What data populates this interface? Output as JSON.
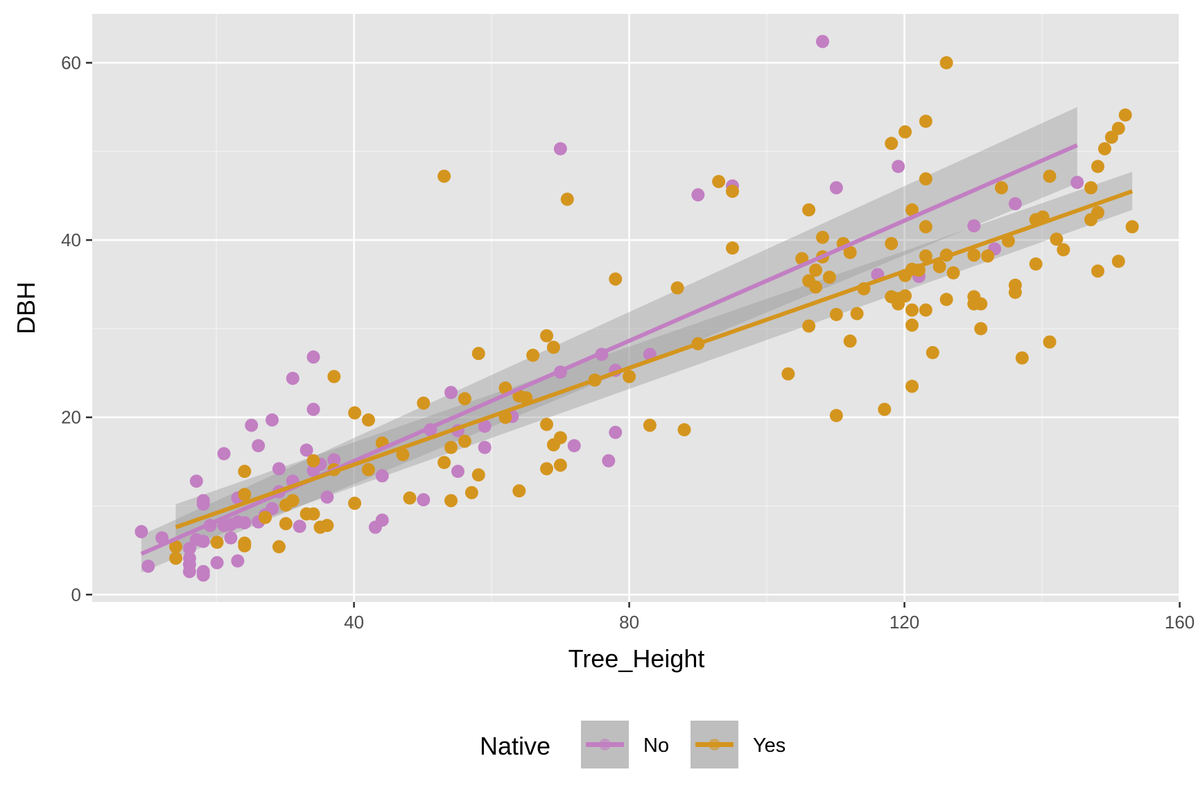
{
  "chart_data": {
    "type": "scatter",
    "title": "",
    "xlabel": "Tree_Height",
    "ylabel": "DBH",
    "xlim": [
      5,
      160
    ],
    "ylim": [
      -1,
      64
    ],
    "x_ticks": [
      40,
      80,
      120,
      160
    ],
    "x_tick_labels": [
      "40",
      "80",
      "120",
      "160"
    ],
    "x_minor_gridlines": [
      20,
      60,
      100,
      140
    ],
    "y_ticks": [
      0,
      20,
      40,
      60
    ],
    "y_tick_labels": [
      "0",
      "20",
      "40",
      "60"
    ],
    "y_minor_gridlines": [
      10,
      30,
      50
    ],
    "grid": true,
    "legend": {
      "title": "Native",
      "position": "bottom",
      "entries": [
        "No",
        "Yes"
      ]
    },
    "series": [
      {
        "name": "No",
        "color": "#C27FC2",
        "points": [
          [
            9.1,
            7.1
          ],
          [
            10.1,
            3.2
          ],
          [
            12.1,
            6.4
          ],
          [
            16.1,
            4.1
          ],
          [
            16.1,
            2.6
          ],
          [
            16.1,
            5.2
          ],
          [
            16.1,
            3.4
          ],
          [
            17.1,
            12.8
          ],
          [
            17.1,
            6.2
          ],
          [
            18.1,
            10.6
          ],
          [
            18.1,
            10.2
          ],
          [
            18.1,
            2.6
          ],
          [
            18.1,
            2.2
          ],
          [
            18.1,
            6.0
          ],
          [
            19.1,
            7.8
          ],
          [
            20.1,
            3.6
          ],
          [
            21.1,
            15.9
          ],
          [
            21.1,
            7.8
          ],
          [
            22.1,
            6.4
          ],
          [
            22.1,
            7.9
          ],
          [
            23.1,
            10.9
          ],
          [
            23.1,
            3.8
          ],
          [
            23.1,
            8.2
          ],
          [
            24.1,
            8.1
          ],
          [
            25.1,
            19.1
          ],
          [
            26.1,
            16.8
          ],
          [
            26.1,
            8.2
          ],
          [
            27.1,
            9.0
          ],
          [
            28.1,
            19.7
          ],
          [
            28.1,
            9.7
          ],
          [
            29.1,
            14.2
          ],
          [
            29.1,
            11.6
          ],
          [
            31.1,
            24.4
          ],
          [
            31.1,
            12.8
          ],
          [
            32.1,
            7.7
          ],
          [
            33.1,
            16.3
          ],
          [
            34.1,
            26.8
          ],
          [
            34.1,
            20.9
          ],
          [
            34.1,
            14.0
          ],
          [
            35.1,
            14.7
          ],
          [
            36.1,
            11.0
          ],
          [
            37.1,
            15.2
          ],
          [
            43.1,
            7.6
          ],
          [
            44.1,
            8.4
          ],
          [
            44.1,
            13.4
          ],
          [
            50.1,
            10.7
          ],
          [
            51.1,
            18.6
          ],
          [
            54.1,
            22.8
          ],
          [
            55.1,
            13.9
          ],
          [
            55.1,
            18.5
          ],
          [
            59.0,
            19.0
          ],
          [
            59.0,
            16.6
          ],
          [
            63.0,
            20.1
          ],
          [
            70.0,
            50.3
          ],
          [
            70.0,
            25.1
          ],
          [
            72.0,
            16.8
          ],
          [
            76.0,
            27.1
          ],
          [
            77.0,
            15.1
          ],
          [
            78.0,
            25.3
          ],
          [
            78.0,
            18.3
          ],
          [
            83.0,
            27.1
          ],
          [
            90.0,
            45.1
          ],
          [
            95.0,
            46.1
          ],
          [
            108.1,
            62.4
          ],
          [
            110.1,
            45.9
          ],
          [
            116.1,
            36.1
          ],
          [
            119.1,
            48.3
          ],
          [
            122.1,
            35.9
          ],
          [
            130.1,
            41.6
          ],
          [
            133.1,
            39.0
          ],
          [
            136.1,
            44.1
          ],
          [
            145.1,
            46.5
          ]
        ],
        "trend": {
          "x": [
            9.1,
            145.1
          ],
          "y": [
            4.6,
            50.7
          ]
        },
        "ci_band": {
          "x": [
            9.1,
            145.1
          ],
          "lower": [
            2.5,
            46.4
          ],
          "upper": [
            6.7,
            55.0
          ]
        }
      },
      {
        "name": "Yes",
        "color": "#D4951E",
        "points": [
          [
            14.1,
            5.4
          ],
          [
            14.1,
            4.1
          ],
          [
            20.1,
            5.9
          ],
          [
            24.1,
            13.9
          ],
          [
            24.1,
            11.3
          ],
          [
            24.1,
            5.8
          ],
          [
            24.1,
            5.5
          ],
          [
            27.1,
            8.7
          ],
          [
            29.1,
            5.4
          ],
          [
            30.1,
            8.0
          ],
          [
            30.1,
            10.1
          ],
          [
            31.1,
            10.6
          ],
          [
            33.1,
            9.1
          ],
          [
            34.1,
            15.1
          ],
          [
            34.1,
            9.1
          ],
          [
            35.1,
            7.6
          ],
          [
            36.1,
            7.8
          ],
          [
            37.1,
            24.6
          ],
          [
            37.1,
            14.1
          ],
          [
            40.1,
            20.5
          ],
          [
            40.1,
            10.3
          ],
          [
            42.1,
            19.7
          ],
          [
            42.1,
            14.1
          ],
          [
            44.1,
            17.1
          ],
          [
            47.1,
            15.8
          ],
          [
            48.1,
            10.9
          ],
          [
            50.1,
            21.6
          ],
          [
            53.1,
            47.2
          ],
          [
            53.1,
            14.9
          ],
          [
            54.1,
            16.6
          ],
          [
            54.1,
            10.6
          ],
          [
            56.1,
            22.1
          ],
          [
            56.1,
            17.3
          ],
          [
            57.1,
            11.5
          ],
          [
            58.1,
            27.2
          ],
          [
            58.1,
            13.5
          ],
          [
            62.0,
            23.3
          ],
          [
            62.0,
            20.0
          ],
          [
            64.0,
            22.4
          ],
          [
            64.0,
            11.7
          ],
          [
            65.0,
            22.2
          ],
          [
            66.0,
            27.0
          ],
          [
            68.0,
            29.2
          ],
          [
            68.0,
            19.2
          ],
          [
            68.0,
            14.2
          ],
          [
            69.0,
            27.9
          ],
          [
            69.0,
            16.9
          ],
          [
            70.0,
            17.7
          ],
          [
            70.0,
            14.6
          ],
          [
            71.0,
            44.6
          ],
          [
            75.0,
            24.2
          ],
          [
            78.0,
            35.6
          ],
          [
            80.0,
            24.6
          ],
          [
            83.0,
            19.1
          ],
          [
            87.0,
            34.6
          ],
          [
            88.0,
            18.6
          ],
          [
            90.0,
            28.3
          ],
          [
            93.0,
            46.6
          ],
          [
            95.0,
            45.5
          ],
          [
            95.0,
            39.1
          ],
          [
            103.1,
            24.9
          ],
          [
            105.1,
            37.9
          ],
          [
            106.1,
            43.4
          ],
          [
            106.1,
            35.4
          ],
          [
            106.1,
            30.3
          ],
          [
            107.1,
            36.6
          ],
          [
            107.1,
            34.7
          ],
          [
            108.1,
            40.3
          ],
          [
            108.1,
            38.1
          ],
          [
            109.1,
            35.8
          ],
          [
            110.1,
            31.6
          ],
          [
            110.1,
            20.2
          ],
          [
            111.1,
            39.6
          ],
          [
            112.1,
            38.6
          ],
          [
            112.1,
            28.6
          ],
          [
            113.1,
            31.7
          ],
          [
            114.1,
            34.5
          ],
          [
            117.1,
            20.9
          ],
          [
            118.1,
            50.9
          ],
          [
            118.1,
            39.6
          ],
          [
            118.1,
            33.6
          ],
          [
            119.1,
            33.4
          ],
          [
            119.1,
            32.8
          ],
          [
            120.1,
            52.2
          ],
          [
            120.1,
            33.7
          ],
          [
            120.1,
            36.0
          ],
          [
            121.1,
            43.4
          ],
          [
            121.1,
            36.7
          ],
          [
            121.1,
            32.1
          ],
          [
            121.1,
            30.4
          ],
          [
            121.1,
            23.5
          ],
          [
            122.1,
            36.6
          ],
          [
            123.1,
            53.4
          ],
          [
            123.1,
            46.9
          ],
          [
            123.1,
            41.5
          ],
          [
            123.1,
            38.2
          ],
          [
            123.1,
            32.1
          ],
          [
            124.1,
            27.3
          ],
          [
            125.1,
            37.0
          ],
          [
            126.1,
            60.0
          ],
          [
            126.1,
            38.3
          ],
          [
            126.1,
            33.3
          ],
          [
            127.1,
            36.3
          ],
          [
            130.1,
            38.3
          ],
          [
            130.1,
            33.6
          ],
          [
            130.1,
            32.8
          ],
          [
            131.1,
            32.8
          ],
          [
            131.1,
            30.0
          ],
          [
            132.1,
            38.2
          ],
          [
            134.1,
            45.9
          ],
          [
            135.1,
            39.9
          ],
          [
            136.1,
            34.9
          ],
          [
            136.1,
            34.1
          ],
          [
            137.1,
            26.7
          ],
          [
            139.1,
            42.3
          ],
          [
            139.1,
            37.3
          ],
          [
            140.1,
            42.6
          ],
          [
            141.1,
            47.2
          ],
          [
            141.1,
            28.5
          ],
          [
            142.1,
            40.1
          ],
          [
            143.1,
            38.9
          ],
          [
            147.1,
            45.9
          ],
          [
            147.1,
            42.3
          ],
          [
            148.1,
            48.3
          ],
          [
            148.1,
            43.1
          ],
          [
            148.1,
            36.5
          ],
          [
            149.1,
            50.3
          ],
          [
            150.1,
            51.6
          ],
          [
            151.1,
            52.6
          ],
          [
            151.1,
            37.6
          ],
          [
            152.1,
            54.1
          ],
          [
            153.1,
            41.5
          ]
        ],
        "trend": {
          "x": [
            14.1,
            153.1
          ],
          "y": [
            7.6,
            45.5
          ]
        },
        "ci_band": {
          "x": [
            14.1,
            153.1
          ],
          "lower": [
            5.0,
            43.4
          ],
          "upper": [
            10.2,
            47.7
          ]
        }
      }
    ]
  }
}
